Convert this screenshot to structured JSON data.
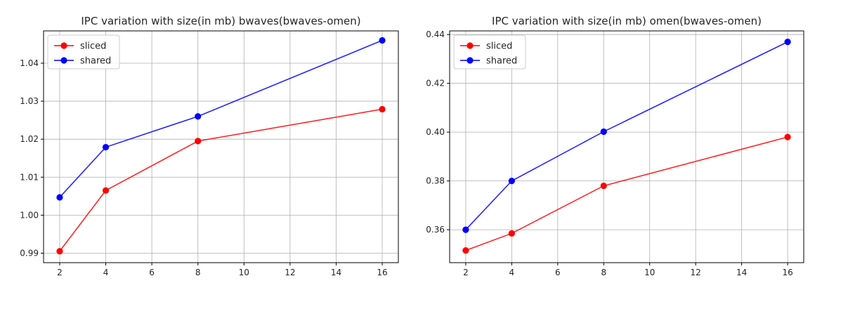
{
  "chart_data": [
    {
      "type": "line",
      "title": "IPC variation with size(in mb) bwaves(bwaves-omen)",
      "xlabel": "",
      "ylabel": "",
      "xlim": [
        1.3,
        16.7
      ],
      "ylim": [
        0.9875,
        1.0485
      ],
      "xticks": [
        2,
        4,
        6,
        8,
        10,
        12,
        14,
        16
      ],
      "yticks": [
        0.99,
        1.0,
        1.01,
        1.02,
        1.03,
        1.04
      ],
      "ytick_labels": [
        "0.99",
        "1.00",
        "1.01",
        "1.02",
        "1.03",
        "1.04"
      ],
      "grid": true,
      "legend_position": "top-left",
      "x": [
        2,
        4,
        8,
        16
      ],
      "series": [
        {
          "name": "sliced",
          "color": "#ff0000",
          "values": [
            0.9905,
            1.0065,
            1.0195,
            1.0279
          ]
        },
        {
          "name": "shared",
          "color": "#0000ff",
          "values": [
            1.0047,
            1.0179,
            1.026,
            1.046
          ]
        }
      ]
    },
    {
      "type": "line",
      "title": "IPC variation with size(in mb) omen(bwaves-omen)",
      "xlabel": "",
      "ylabel": "",
      "xlim": [
        1.3,
        16.7
      ],
      "ylim": [
        0.3465,
        0.4415
      ],
      "xticks": [
        2,
        4,
        6,
        8,
        10,
        12,
        14,
        16
      ],
      "yticks": [
        0.36,
        0.38,
        0.4,
        0.42,
        0.44
      ],
      "ytick_labels": [
        "0.36",
        "0.38",
        "0.40",
        "0.42",
        "0.44"
      ],
      "grid": true,
      "legend_position": "top-left",
      "x": [
        2,
        4,
        8,
        16
      ],
      "series": [
        {
          "name": "sliced",
          "color": "#ff0000",
          "values": [
            0.3515,
            0.3585,
            0.378,
            0.398
          ]
        },
        {
          "name": "shared",
          "color": "#0000ff",
          "values": [
            0.36,
            0.38,
            0.4002,
            0.437
          ]
        }
      ]
    }
  ]
}
